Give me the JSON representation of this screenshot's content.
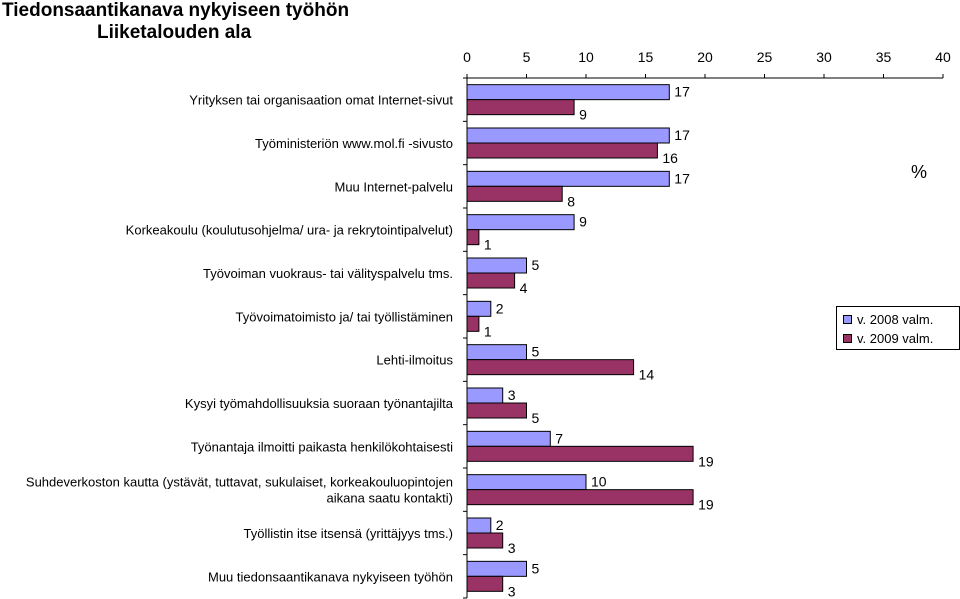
{
  "title": "Tiedonsaantikanava nykyiseen työhön",
  "subtitle": "Liiketalouden ala",
  "chart_data": {
    "type": "bar",
    "orientation": "horizontal",
    "categories": [
      "Yrityksen tai organisaation omat Internet-sivut",
      "Työministeriön www.mol.fi -sivusto",
      "Muu Internet-palvelu",
      "Korkeakoulu (koulutusohjelma/ ura- ja rekrytointipalvelut)",
      "Työvoiman vuokraus- tai välityspalvelu tms.",
      "Työvoimatoimisto ja/ tai työllistäminen",
      "Lehti-ilmoitus",
      "Kysyi työmahdollisuuksia suoraan työnantajilta",
      "Työnantaja ilmoitti paikasta henkilökohtaisesti",
      [
        "Suhdeverkoston kautta (ystävät, tuttavat, sukulaiset, korkeakouluopintojen",
        "aikana saatu kontakti)"
      ],
      "Työllistin itse itsensä (yrittäjyys tms.)",
      "Muu tiedonsaantikanava nykyiseen työhön"
    ],
    "series": [
      {
        "name": "v. 2008 valm.",
        "color": "#9999FF",
        "values": [
          17,
          17,
          17,
          9,
          5,
          2,
          5,
          3,
          7,
          10,
          2,
          5
        ]
      },
      {
        "name": "v. 2009 valm.",
        "color": "#993366",
        "values": [
          9,
          16,
          8,
          1,
          4,
          1,
          14,
          5,
          19,
          19,
          3,
          3
        ]
      }
    ],
    "xlim": [
      0,
      40
    ],
    "xticks": [
      "0",
      "5",
      "10",
      "15",
      "20",
      "25",
      "30",
      "35",
      "40"
    ],
    "axis_position": "top",
    "unit_label": "%",
    "grid": false,
    "legend_position": "right"
  }
}
